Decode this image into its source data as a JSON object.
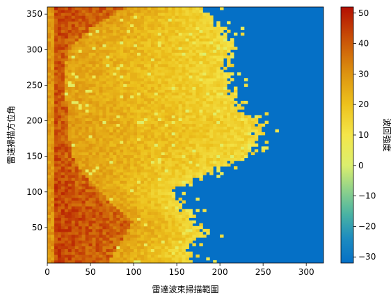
{
  "chart_data": {
    "type": "heatmap",
    "title": "",
    "xlabel": "雷達波束掃描範圍",
    "ylabel": "雷達掃描方位角",
    "colorbar_label": "波回強度",
    "xlim": [
      0,
      320
    ],
    "ylim": [
      0,
      360
    ],
    "x_ticks": [
      0,
      50,
      100,
      150,
      200,
      250,
      300
    ],
    "y_ticks": [
      50,
      100,
      150,
      200,
      250,
      300,
      350
    ],
    "colorbar_ticks": [
      -30,
      -20,
      -10,
      0,
      10,
      20,
      30,
      40,
      50
    ],
    "colorbar_range": [
      -32,
      52
    ],
    "colormap": [
      {
        "value": -32,
        "color": "#0570c6"
      },
      {
        "value": -24,
        "color": "#1c8bc0"
      },
      {
        "value": -16,
        "color": "#4ab3a3"
      },
      {
        "value": -8,
        "color": "#8fd28a"
      },
      {
        "value": 0,
        "color": "#dcef6e"
      },
      {
        "value": 10,
        "color": "#f4e64a"
      },
      {
        "value": 20,
        "color": "#edc21d"
      },
      {
        "value": 30,
        "color": "#dd9410"
      },
      {
        "value": 40,
        "color": "#cc5a08"
      },
      {
        "value": 52,
        "color": "#b30f02"
      }
    ],
    "boundary_profile": {
      "description_free": true,
      "azimuth": [
        0,
        20,
        40,
        60,
        80,
        100,
        120,
        150,
        180,
        200,
        215,
        240,
        270,
        300,
        330,
        360
      ],
      "range_end": [
        175,
        160,
        185,
        170,
        155,
        150,
        175,
        230,
        245,
        250,
        225,
        215,
        205,
        215,
        205,
        180
      ]
    },
    "core_profile": {
      "azimuth": [
        0,
        30,
        60,
        90,
        120,
        150,
        180,
        210,
        240,
        270,
        300,
        330,
        360
      ],
      "range_end": [
        70,
        85,
        100,
        70,
        45,
        30,
        25,
        25,
        20,
        20,
        25,
        50,
        90
      ]
    }
  }
}
